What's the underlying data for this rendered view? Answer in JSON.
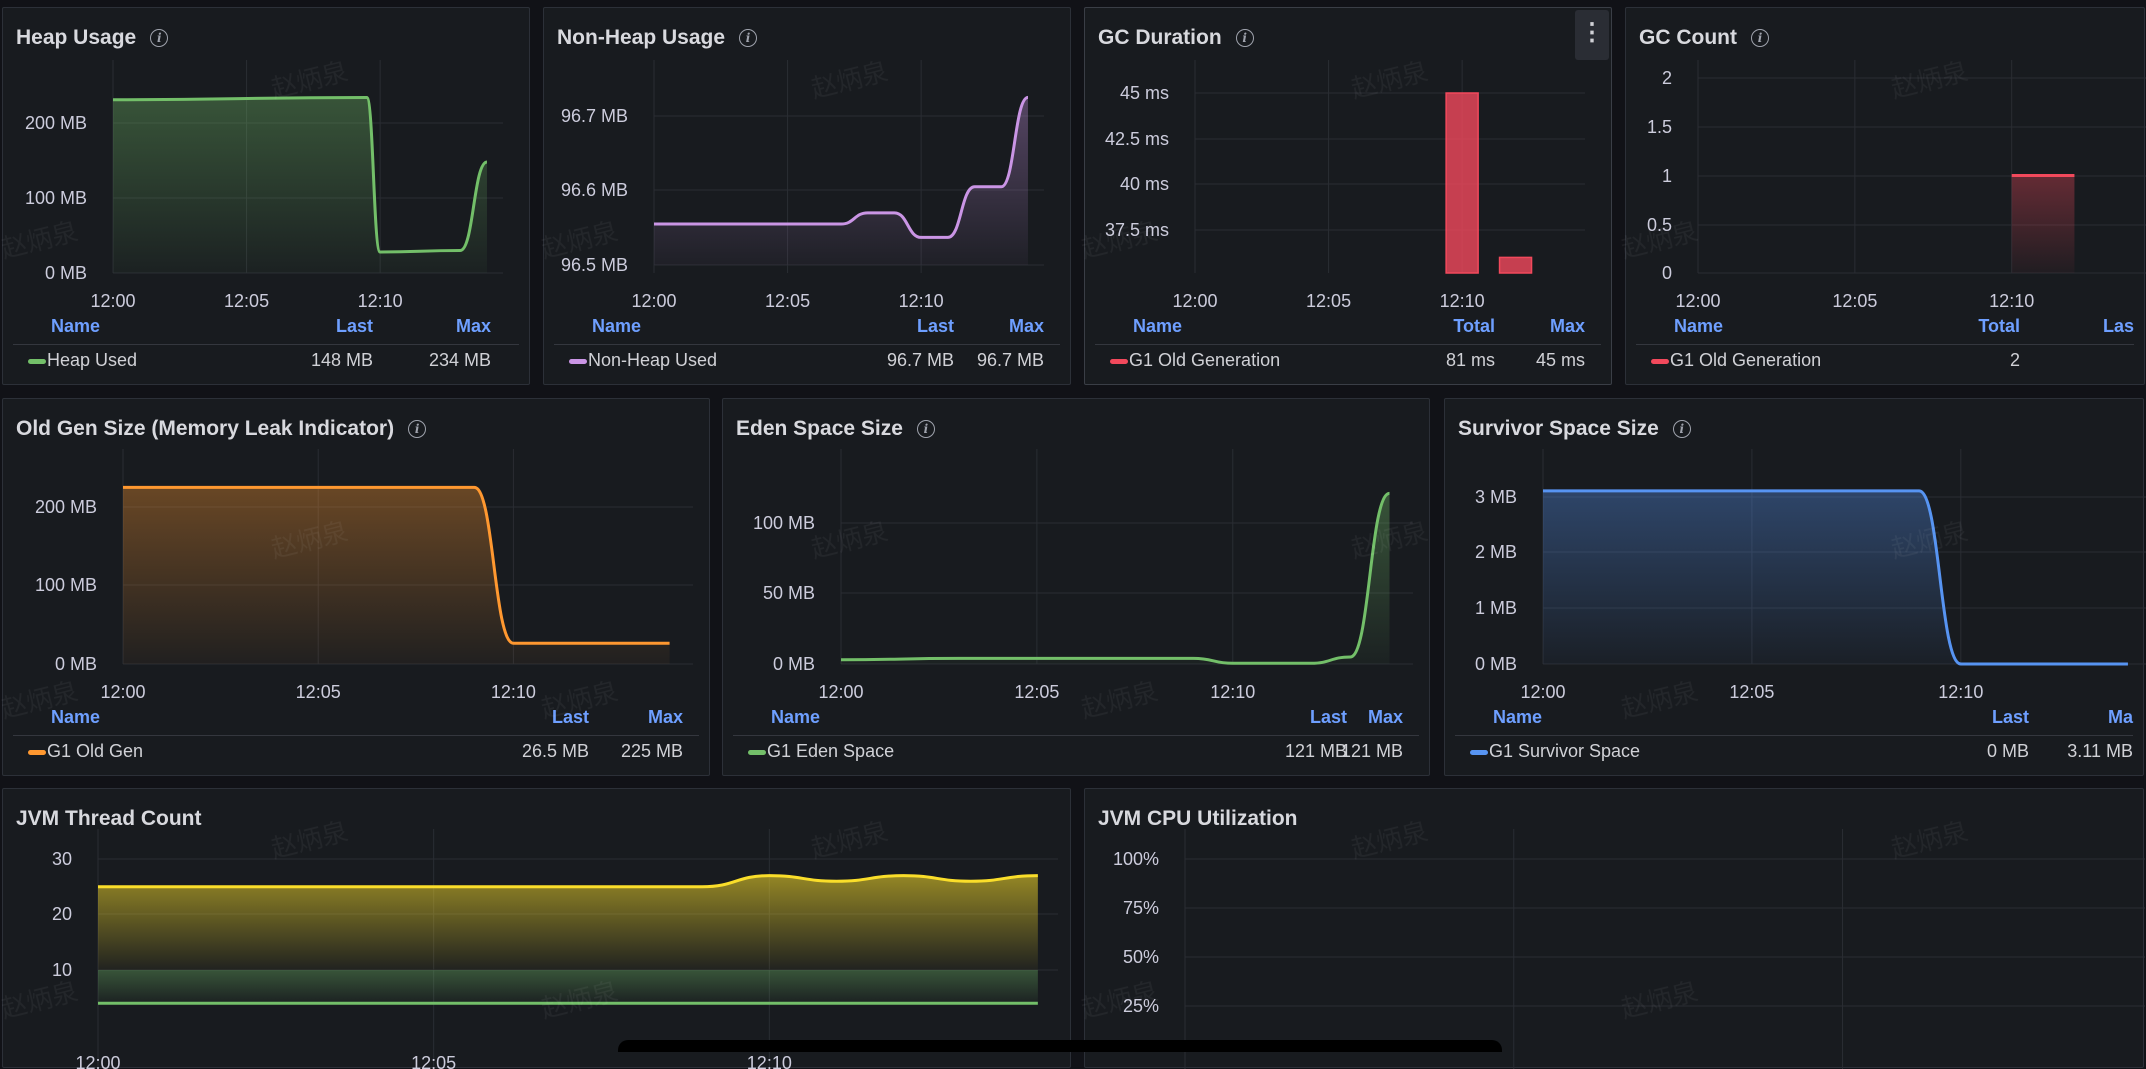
{
  "colors": {
    "green": "#73bf69",
    "purple": "#ca95e5",
    "red": "#f2495c",
    "orange": "#ff9830",
    "blue": "#5794f2",
    "yellow": "#fade2a",
    "grid": "#2a2d33",
    "header": "#6e9fff"
  },
  "panels": [
    {
      "id": "heap",
      "title": "Heap Usage",
      "info_icon": "info-icon",
      "yTicks": [
        "200 MB",
        "100 MB",
        "0 MB"
      ],
      "xTicks": [
        "12:00",
        "12:05",
        "12:10"
      ],
      "cols": [
        "Name",
        "Last",
        "Max"
      ],
      "rows": [
        {
          "name": "Heap Used",
          "color": "#73bf69",
          "v1": "148 MB",
          "v2": "234 MB"
        }
      ],
      "chart_data": {
        "type": "area",
        "series": [
          {
            "name": "Heap Used",
            "x": [
              "12:00",
              "12:09:30",
              "12:10",
              "12:13:00",
              "12:14"
            ],
            "values": [
              231,
              234,
              28,
              30,
              148
            ]
          }
        ],
        "ylim": [
          0,
          260
        ]
      }
    },
    {
      "id": "nonheap",
      "title": "Non-Heap Usage",
      "info_icon": "info-icon",
      "yTicks": [
        "96.7 MB",
        "96.6 MB",
        "96.5 MB"
      ],
      "xTicks": [
        "12:00",
        "12:05",
        "12:10"
      ],
      "cols": [
        "Name",
        "Last",
        "Max"
      ],
      "rows": [
        {
          "name": "Non-Heap Used",
          "color": "#ca95e5",
          "v1": "96.7 MB",
          "v2": "96.7 MB"
        }
      ],
      "chart_data": {
        "type": "area",
        "series": [
          {
            "name": "Non-Heap Used",
            "x": [
              "12:00",
              "12:07",
              "12:08",
              "12:09",
              "12:10",
              "12:11",
              "12:12",
              "12:13",
              "12:14"
            ],
            "values": [
              96.555,
              96.555,
              96.57,
              96.57,
              96.537,
              96.537,
              96.605,
              96.605,
              96.725
            ]
          }
        ],
        "ylim": [
          96.49,
          96.73
        ]
      }
    },
    {
      "id": "gcdur",
      "title": "GC Duration",
      "info_icon": "info-icon",
      "menu_icon": "kebab-menu-icon",
      "yTicks": [
        "45 ms",
        "42.5 ms",
        "40 ms",
        "37.5 ms"
      ],
      "xTicks": [
        "12:00",
        "12:05",
        "12:10"
      ],
      "cols": [
        "Name",
        "Total",
        "Max"
      ],
      "rows": [
        {
          "name": "G1 Old Generation",
          "color": "#f2495c",
          "v1": "81 ms",
          "v2": "45 ms"
        }
      ],
      "chart_data": {
        "type": "bar",
        "series": [
          {
            "name": "G1 Old Generation",
            "x": [
              "12:10",
              "12:12"
            ],
            "values": [
              45,
              36
            ]
          }
        ],
        "ylim": [
          35,
          46
        ]
      }
    },
    {
      "id": "gccount",
      "title": "GC Count",
      "info_icon": "info-icon",
      "yTicks": [
        "2",
        "1.5",
        "1",
        "0.5",
        "0"
      ],
      "xTicks": [
        "12:00",
        "12:05",
        "12:10"
      ],
      "cols": [
        "Name",
        "Total",
        "Las"
      ],
      "rows": [
        {
          "name": "G1 Old Generation",
          "color": "#f2495c",
          "v1": "2",
          "v2": ""
        }
      ],
      "chart_data": {
        "type": "line",
        "series": [
          {
            "name": "G1 Old Generation",
            "x": [
              "12:10",
              "12:12"
            ],
            "values": [
              1,
              1
            ]
          }
        ],
        "ylim": [
          0,
          2
        ]
      }
    },
    {
      "id": "oldgen",
      "title": "Old Gen Size (Memory Leak Indicator)",
      "info_icon": "info-icon",
      "yTicks": [
        "200 MB",
        "100 MB",
        "0 MB"
      ],
      "xTicks": [
        "12:00",
        "12:05",
        "12:10"
      ],
      "cols": [
        "Name",
        "Last",
        "Max"
      ],
      "rows": [
        {
          "name": "G1 Old Gen",
          "color": "#ff9830",
          "v1": "26.5 MB",
          "v2": "225 MB"
        }
      ],
      "chart_data": {
        "type": "area",
        "series": [
          {
            "name": "G1 Old Gen",
            "x": [
              "12:00",
              "12:09",
              "12:10",
              "12:14"
            ],
            "values": [
              225,
              225,
              26.5,
              26.5
            ]
          }
        ],
        "ylim": [
          0,
          260
        ]
      }
    },
    {
      "id": "eden",
      "title": "Eden Space Size",
      "info_icon": "info-icon",
      "yTicks": [
        "100 MB",
        "50 MB",
        "0 MB"
      ],
      "xTicks": [
        "12:00",
        "12:05",
        "12:10"
      ],
      "cols": [
        "Name",
        "Last",
        "Max"
      ],
      "rows": [
        {
          "name": "G1 Eden Space",
          "color": "#73bf69",
          "v1": "121 MB",
          "v2": "121 MB"
        }
      ],
      "chart_data": {
        "type": "area",
        "series": [
          {
            "name": "G1 Eden Space",
            "x": [
              "12:00",
              "12:03",
              "12:09",
              "12:10",
              "12:12",
              "12:13",
              "12:14"
            ],
            "values": [
              3,
              4,
              4,
              0.5,
              0.5,
              5,
              121
            ]
          }
        ],
        "ylim": [
          0,
          140
        ]
      }
    },
    {
      "id": "survivor",
      "title": "Survivor Space Size",
      "info_icon": "info-icon",
      "yTicks": [
        "3 MB",
        "2 MB",
        "1 MB",
        "0 MB"
      ],
      "xTicks": [
        "12:00",
        "12:05",
        "12:10"
      ],
      "cols": [
        "Name",
        "Last",
        "Ma"
      ],
      "rows": [
        {
          "name": "G1 Survivor Space",
          "color": "#5794f2",
          "v1": "0 MB",
          "v2": "3.11 MB"
        }
      ],
      "chart_data": {
        "type": "area",
        "series": [
          {
            "name": "G1 Survivor Space",
            "x": [
              "12:00",
              "12:09",
              "12:10",
              "12:14"
            ],
            "values": [
              3.11,
              3.11,
              0,
              0
            ]
          }
        ],
        "ylim": [
          0,
          3.5
        ]
      }
    },
    {
      "id": "threads",
      "title": "JVM Thread Count",
      "yTicks": [
        "30",
        "20",
        "10"
      ],
      "xTicks": [
        "12:00",
        "12:05",
        "12:10"
      ],
      "chart_data": {
        "type": "area",
        "series": [
          {
            "name": "",
            "x": [
              "12:00",
              "12:09",
              "12:10",
              "12:11",
              "12:12",
              "12:13",
              "12:14"
            ],
            "values": [
              25,
              25,
              27,
              26,
              27,
              26,
              27
            ]
          },
          {
            "name": "",
            "x": [
              "12:00",
              "12:14"
            ],
            "values": [
              4,
              4
            ]
          }
        ],
        "ylim": [
          0,
          30
        ]
      }
    },
    {
      "id": "cpu",
      "title": "JVM CPU Utilization",
      "yTicks": [
        "100%",
        "75%",
        "50%",
        "25%"
      ],
      "chart_data": {
        "type": "line",
        "series": [],
        "ylim": [
          0,
          100
        ]
      }
    }
  ],
  "watermark": "赵炳泉"
}
